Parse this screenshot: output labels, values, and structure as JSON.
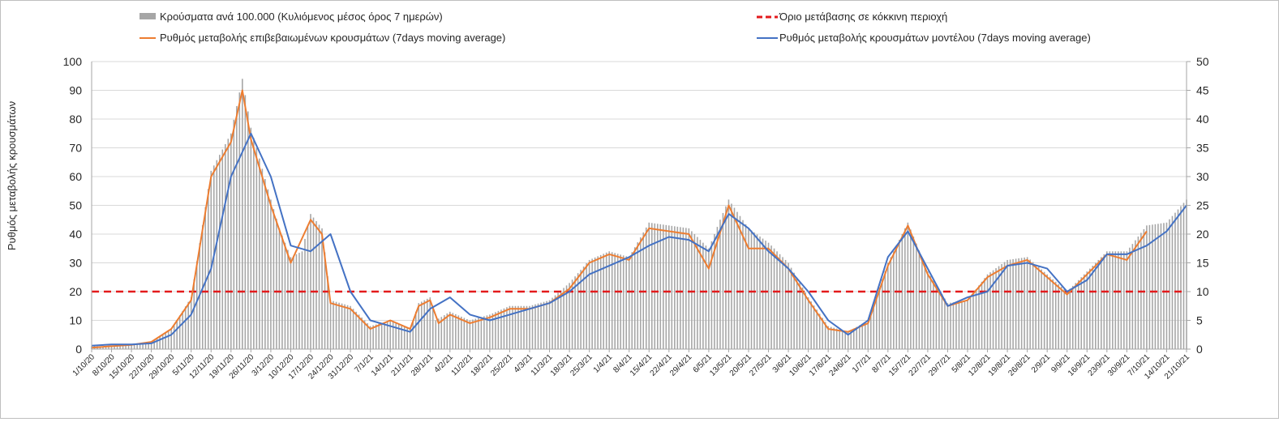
{
  "chart_data": {
    "type": "bar+line",
    "ylabel": "Ρυθμός μεταβολής κρουσμάτων",
    "y_left": {
      "min": 0,
      "max": 100,
      "ticks": [
        "0",
        "10",
        "20",
        "30",
        "40",
        "50",
        "60",
        "70",
        "80",
        "90",
        "100"
      ]
    },
    "y_right": {
      "min": 0,
      "max": 50,
      "ticks": [
        "0",
        "5",
        "10",
        "15",
        "20",
        "25",
        "30",
        "35",
        "40",
        "45",
        "50"
      ]
    },
    "x_start": "1/10/20",
    "x_end": "21/10/21",
    "x_tick_labels": [
      "1/10/20",
      "8/10/20",
      "15/10/20",
      "22/10/20",
      "29/10/20",
      "5/11/20",
      "12/11/20",
      "19/11/20",
      "26/11/20",
      "3/12/20",
      "10/12/20",
      "17/12/20",
      "24/12/20",
      "31/12/20",
      "7/1/21",
      "14/1/21",
      "21/1/21",
      "28/1/21",
      "4/2/21",
      "11/2/21",
      "18/2/21",
      "25/2/21",
      "4/3/21",
      "11/3/21",
      "18/3/21",
      "25/3/21",
      "1/4/21",
      "8/4/21",
      "15/4/21",
      "22/4/21",
      "29/4/21",
      "6/5/21",
      "13/5/21",
      "20/5/21",
      "27/5/21",
      "3/6/21",
      "10/6/21",
      "17/6/21",
      "24/6/21",
      "1/7/21",
      "8/7/21",
      "15/7/21",
      "22/7/21",
      "29/7/21",
      "5/8/21",
      "12/8/21",
      "19/8/21",
      "26/8/21",
      "2/9/21",
      "9/9/21",
      "16/9/21",
      "23/9/21",
      "30/9/21",
      "7/10/21",
      "14/10/21",
      "21/10/21"
    ],
    "legend": [
      {
        "key": "bars",
        "label": "Κρούσματα ανά 100.000 (Κυλιόμενος μέσος όρος 7 ημερών)",
        "color": "#a6a6a6"
      },
      {
        "key": "threshold",
        "label": "Όριο μετάβασης  σε κόκκινη περιοχή",
        "color": "#e31a1c"
      },
      {
        "key": "confirmed",
        "label": "Ρυθμός μεταβολής επιβεβαιωμένων κρουσμάτων (7days moving average)",
        "color": "#ed7d31"
      },
      {
        "key": "model",
        "label": "Ρυθμός μεταβολής κρουσμάτων μοντέλου (7days moving average)",
        "color": "#4472c4"
      }
    ],
    "series": [
      {
        "name": "Κρούσματα ανά 100.000 (Κυλιόμενος μέσος όρος 7 ημερών)",
        "axis": "left",
        "kind": "bar",
        "interpolate": "daily",
        "points": [
          [
            "1/10/20",
            1
          ],
          [
            "8/10/20",
            1
          ],
          [
            "15/10/20",
            1.5
          ],
          [
            "22/10/20",
            2.5
          ],
          [
            "29/10/20",
            7
          ],
          [
            "5/11/20",
            18
          ],
          [
            "12/11/20",
            62
          ],
          [
            "19/11/20",
            75
          ],
          [
            "23/11/20",
            94
          ],
          [
            "26/11/20",
            77
          ],
          [
            "3/12/20",
            52
          ],
          [
            "6/12/20",
            42
          ],
          [
            "10/12/20",
            32
          ],
          [
            "14/12/20",
            34
          ],
          [
            "17/12/20",
            47
          ],
          [
            "21/12/20",
            42
          ],
          [
            "24/12/20",
            17
          ],
          [
            "31/12/20",
            15
          ],
          [
            "7/1/21",
            8
          ],
          [
            "14/1/21",
            10
          ],
          [
            "21/1/21",
            7
          ],
          [
            "24/1/21",
            16
          ],
          [
            "28/1/21",
            18
          ],
          [
            "30/1/21",
            10
          ],
          [
            "4/2/21",
            13
          ],
          [
            "11/2/21",
            10
          ],
          [
            "18/2/21",
            12
          ],
          [
            "25/2/21",
            15
          ],
          [
            "4/3/21",
            15
          ],
          [
            "11/3/21",
            17
          ],
          [
            "18/3/21",
            23
          ],
          [
            "25/3/21",
            31
          ],
          [
            "1/4/21",
            34
          ],
          [
            "8/4/21",
            32
          ],
          [
            "15/4/21",
            44
          ],
          [
            "22/4/21",
            43
          ],
          [
            "29/4/21",
            42
          ],
          [
            "6/5/21",
            35
          ],
          [
            "10/5/21",
            45
          ],
          [
            "13/5/21",
            52
          ],
          [
            "20/5/21",
            42
          ],
          [
            "27/5/21",
            37
          ],
          [
            "3/6/21",
            30
          ],
          [
            "10/6/21",
            18
          ],
          [
            "17/6/21",
            8
          ],
          [
            "24/6/21",
            6
          ],
          [
            "1/7/21",
            10
          ],
          [
            "8/7/21",
            30
          ],
          [
            "15/7/21",
            44
          ],
          [
            "22/7/21",
            27
          ],
          [
            "29/7/21",
            16
          ],
          [
            "5/8/21",
            17
          ],
          [
            "12/8/21",
            26
          ],
          [
            "19/8/21",
            31
          ],
          [
            "26/8/21",
            32
          ],
          [
            "2/9/21",
            26
          ],
          [
            "9/9/21",
            20
          ],
          [
            "16/9/21",
            27
          ],
          [
            "23/9/21",
            34
          ],
          [
            "30/9/21",
            34
          ],
          [
            "7/10/21",
            43
          ],
          [
            "14/10/21",
            44
          ],
          [
            "21/10/21",
            52
          ]
        ]
      },
      {
        "name": "Ρυθμός μεταβολής επιβεβαιωμένων κρουσμάτων (7days moving average)",
        "axis": "left",
        "kind": "line",
        "points": [
          [
            "1/10/20",
            0.5
          ],
          [
            "8/10/20",
            1
          ],
          [
            "15/10/20",
            1.5
          ],
          [
            "22/10/20",
            2.5
          ],
          [
            "29/10/20",
            7
          ],
          [
            "5/11/20",
            17
          ],
          [
            "12/11/20",
            60
          ],
          [
            "19/11/20",
            72
          ],
          [
            "23/11/20",
            90
          ],
          [
            "26/11/20",
            73
          ],
          [
            "3/12/20",
            50
          ],
          [
            "10/12/20",
            30
          ],
          [
            "17/12/20",
            45
          ],
          [
            "21/12/20",
            40
          ],
          [
            "24/12/20",
            16
          ],
          [
            "31/12/20",
            14
          ],
          [
            "7/1/21",
            7
          ],
          [
            "14/1/21",
            10
          ],
          [
            "21/1/21",
            7
          ],
          [
            "24/1/21",
            15
          ],
          [
            "28/1/21",
            17
          ],
          [
            "31/1/21",
            9
          ],
          [
            "4/2/21",
            12
          ],
          [
            "11/2/21",
            9
          ],
          [
            "18/2/21",
            11
          ],
          [
            "25/2/21",
            14
          ],
          [
            "4/3/21",
            14
          ],
          [
            "11/3/21",
            16
          ],
          [
            "18/3/21",
            21
          ],
          [
            "25/3/21",
            30
          ],
          [
            "1/4/21",
            33
          ],
          [
            "8/4/21",
            31
          ],
          [
            "15/4/21",
            42
          ],
          [
            "22/4/21",
            41
          ],
          [
            "29/4/21",
            40
          ],
          [
            "6/5/21",
            28
          ],
          [
            "13/5/21",
            50
          ],
          [
            "20/5/21",
            35
          ],
          [
            "27/5/21",
            35
          ],
          [
            "3/6/21",
            28
          ],
          [
            "10/6/21",
            17
          ],
          [
            "17/6/21",
            7
          ],
          [
            "24/6/21",
            6
          ],
          [
            "1/7/21",
            9
          ],
          [
            "8/7/21",
            29
          ],
          [
            "15/7/21",
            43
          ],
          [
            "22/7/21",
            26
          ],
          [
            "29/7/21",
            15
          ],
          [
            "5/8/21",
            17
          ],
          [
            "12/8/21",
            25
          ],
          [
            "19/8/21",
            29
          ],
          [
            "26/8/21",
            31
          ],
          [
            "2/9/21",
            25
          ],
          [
            "9/9/21",
            19
          ],
          [
            "16/9/21",
            26
          ],
          [
            "23/9/21",
            33
          ],
          [
            "30/9/21",
            31
          ],
          [
            "7/10/21",
            41
          ]
        ]
      },
      {
        "name": "Ρυθμός μεταβολής κρουσμάτων μοντέλου (7days moving average)",
        "axis": "right",
        "kind": "line",
        "points": [
          [
            "1/10/20",
            0.6
          ],
          [
            "8/10/20",
            0.8
          ],
          [
            "15/10/20",
            0.8
          ],
          [
            "22/10/20",
            1
          ],
          [
            "29/10/20",
            2.5
          ],
          [
            "5/11/20",
            6
          ],
          [
            "12/11/20",
            14
          ],
          [
            "19/11/20",
            30
          ],
          [
            "26/11/20",
            37.5
          ],
          [
            "3/12/20",
            30
          ],
          [
            "10/12/20",
            18
          ],
          [
            "17/12/20",
            17
          ],
          [
            "24/12/20",
            20
          ],
          [
            "31/12/20",
            10
          ],
          [
            "7/1/21",
            5
          ],
          [
            "14/1/21",
            4
          ],
          [
            "21/1/21",
            3
          ],
          [
            "28/1/21",
            7
          ],
          [
            "4/2/21",
            9
          ],
          [
            "11/2/21",
            6
          ],
          [
            "18/2/21",
            5
          ],
          [
            "25/2/21",
            6
          ],
          [
            "4/3/21",
            7
          ],
          [
            "11/3/21",
            8
          ],
          [
            "18/3/21",
            10
          ],
          [
            "25/3/21",
            13
          ],
          [
            "1/4/21",
            14.5
          ],
          [
            "8/4/21",
            16
          ],
          [
            "15/4/21",
            18
          ],
          [
            "22/4/21",
            19.5
          ],
          [
            "29/4/21",
            19
          ],
          [
            "6/5/21",
            17
          ],
          [
            "13/5/21",
            23.5
          ],
          [
            "20/5/21",
            21
          ],
          [
            "27/5/21",
            17
          ],
          [
            "3/6/21",
            14
          ],
          [
            "10/6/21",
            10
          ],
          [
            "17/6/21",
            5
          ],
          [
            "24/6/21",
            2.5
          ],
          [
            "1/7/21",
            5
          ],
          [
            "8/7/21",
            16
          ],
          [
            "15/7/21",
            20.5
          ],
          [
            "22/7/21",
            14
          ],
          [
            "29/7/21",
            7.5
          ],
          [
            "5/8/21",
            9
          ],
          [
            "12/8/21",
            10
          ],
          [
            "19/8/21",
            14.5
          ],
          [
            "26/8/21",
            15
          ],
          [
            "2/9/21",
            14
          ],
          [
            "9/9/21",
            10
          ],
          [
            "16/9/21",
            12
          ],
          [
            "23/9/21",
            16.5
          ],
          [
            "30/9/21",
            16.5
          ],
          [
            "7/10/21",
            18
          ],
          [
            "14/10/21",
            20.5
          ],
          [
            "21/10/21",
            25
          ]
        ]
      },
      {
        "name": "Όριο μετάβασης  σε κόκκινη περιοχή",
        "axis": "left",
        "kind": "threshold",
        "value": 20
      }
    ]
  }
}
